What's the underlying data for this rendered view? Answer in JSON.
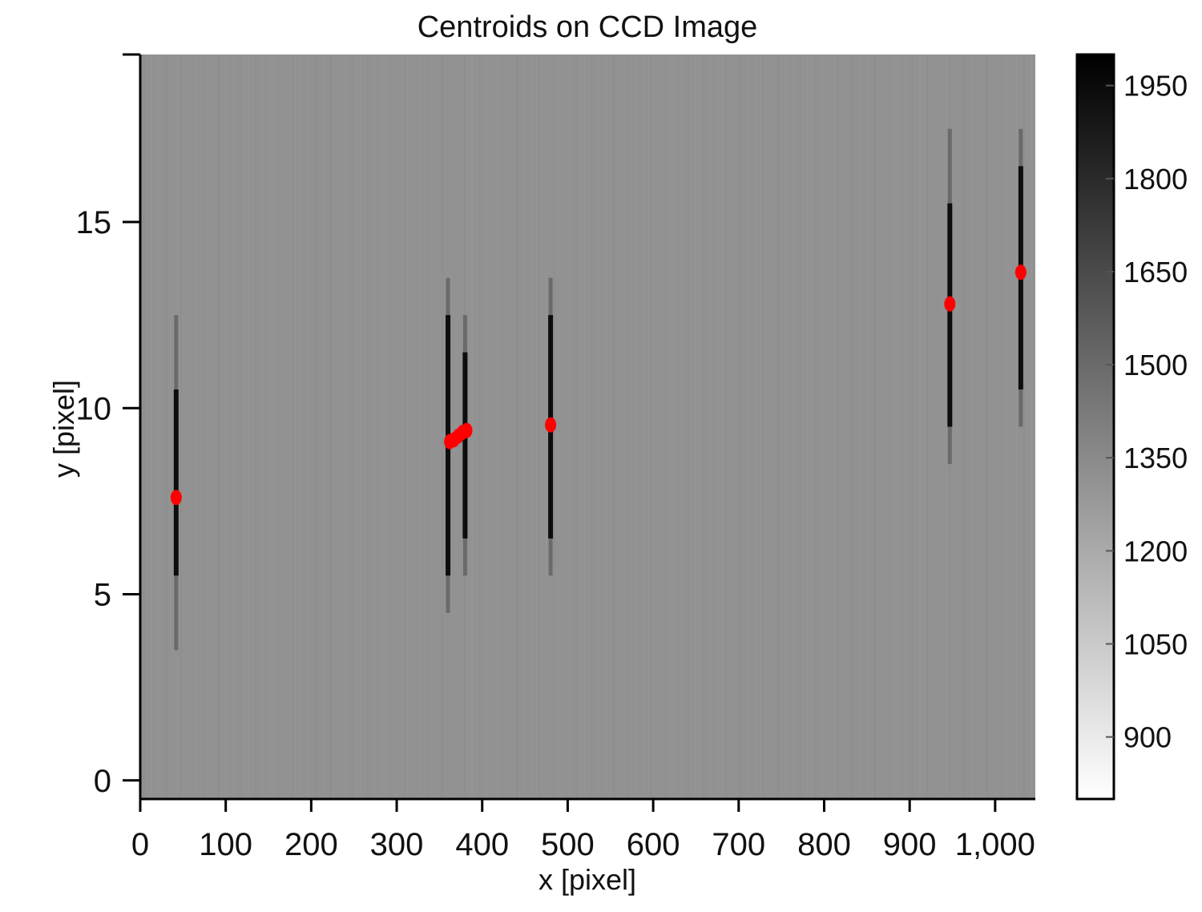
{
  "chart_data": {
    "type": "heatmap",
    "title": "Centroids on CCD Image",
    "xlabel": "x [pixel]",
    "ylabel": "y [pixel]",
    "xlim": [
      0,
      1047
    ],
    "ylim": [
      -0.5,
      19.5
    ],
    "x_ticks": [
      0,
      100,
      200,
      300,
      400,
      500,
      600,
      700,
      800,
      900,
      1000
    ],
    "x_tick_labels": [
      "0",
      "100",
      "200",
      "300",
      "400",
      "500",
      "600",
      "700",
      "800",
      "900",
      "1,000"
    ],
    "y_ticks": [
      0,
      5,
      10,
      15
    ],
    "y_tick_labels": [
      "0",
      "5",
      "10",
      "15"
    ],
    "colormap": "gray_r",
    "colorbar": {
      "range": [
        800,
        2000
      ],
      "ticks": [
        900,
        1050,
        1200,
        1350,
        1500,
        1650,
        1800,
        1950
      ],
      "tick_labels": [
        "900",
        "1050",
        "1200",
        "1350",
        "1500",
        "1650",
        "1800",
        "1950"
      ]
    },
    "background_level": 1350,
    "streaks": [
      {
        "x": 42,
        "y_min": 3.5,
        "y_max": 12.5,
        "peak_y_min": 5.5,
        "peak_y_max": 10.5
      },
      {
        "x": 360,
        "y_min": 4.5,
        "y_max": 13.5,
        "peak_y_min": 5.5,
        "peak_y_max": 12.5
      },
      {
        "x": 380,
        "y_min": 5.5,
        "y_max": 12.5,
        "peak_y_min": 6.5,
        "peak_y_max": 11.5
      },
      {
        "x": 480,
        "y_min": 5.5,
        "y_max": 13.5,
        "peak_y_min": 6.5,
        "peak_y_max": 12.5
      },
      {
        "x": 947,
        "y_min": 8.5,
        "y_max": 17.5,
        "peak_y_min": 9.5,
        "peak_y_max": 15.5
      },
      {
        "x": 1030,
        "y_min": 9.5,
        "y_max": 17.5,
        "peak_y_min": 10.5,
        "peak_y_max": 16.5
      }
    ],
    "centroids": {
      "color": "#ff0000",
      "points": [
        {
          "x": 42,
          "y": 7.6
        },
        {
          "x": 362,
          "y": 9.1
        },
        {
          "x": 367,
          "y": 9.15
        },
        {
          "x": 372,
          "y": 9.25
        },
        {
          "x": 377,
          "y": 9.35
        },
        {
          "x": 382,
          "y": 9.4
        },
        {
          "x": 480,
          "y": 9.55
        },
        {
          "x": 947,
          "y": 12.8
        },
        {
          "x": 1030,
          "y": 13.65
        }
      ]
    }
  }
}
